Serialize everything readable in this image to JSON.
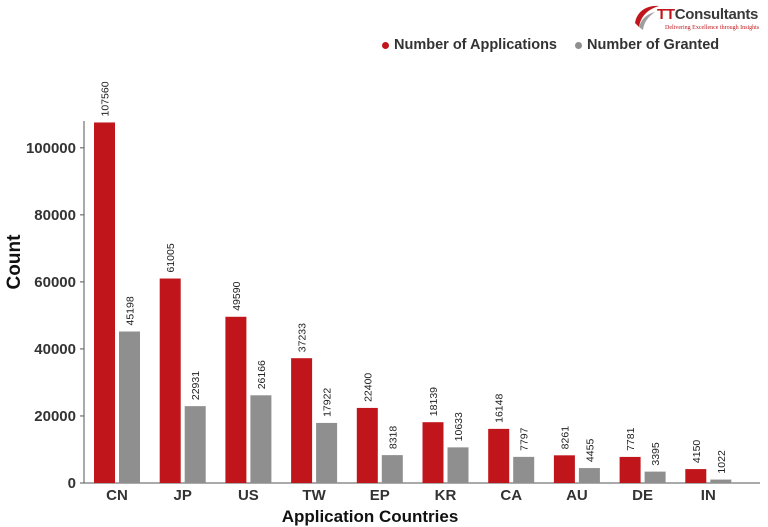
{
  "logo": {
    "brand_prefix": "TT",
    "brand_suffix": "Consultants",
    "tagline": "Delivering Excellence through Insights"
  },
  "colors": {
    "applications": "#c0161b",
    "granted": "#8f8f8f",
    "axis_text": "#333333",
    "label_text": "#222222"
  },
  "chart_data": {
    "type": "bar",
    "title": "",
    "xlabel": "Application Countries",
    "ylabel": "Count",
    "categories": [
      "CN",
      "JP",
      "US",
      "TW",
      "EP",
      "KR",
      "CA",
      "AU",
      "DE",
      "IN"
    ],
    "series": [
      {
        "name": "Number of Applications",
        "values": [
          107560,
          61005,
          49590,
          37233,
          22400,
          18139,
          16148,
          8261,
          7781,
          4150
        ]
      },
      {
        "name": "Number of Granted",
        "values": [
          45198,
          22931,
          26166,
          17922,
          8318,
          10633,
          7797,
          4455,
          3395,
          1022
        ]
      }
    ],
    "ylim": [
      0,
      108000
    ],
    "yticks": [
      0,
      20000,
      40000,
      60000,
      80000,
      100000
    ],
    "legend_position": "top-right",
    "grid": false
  }
}
